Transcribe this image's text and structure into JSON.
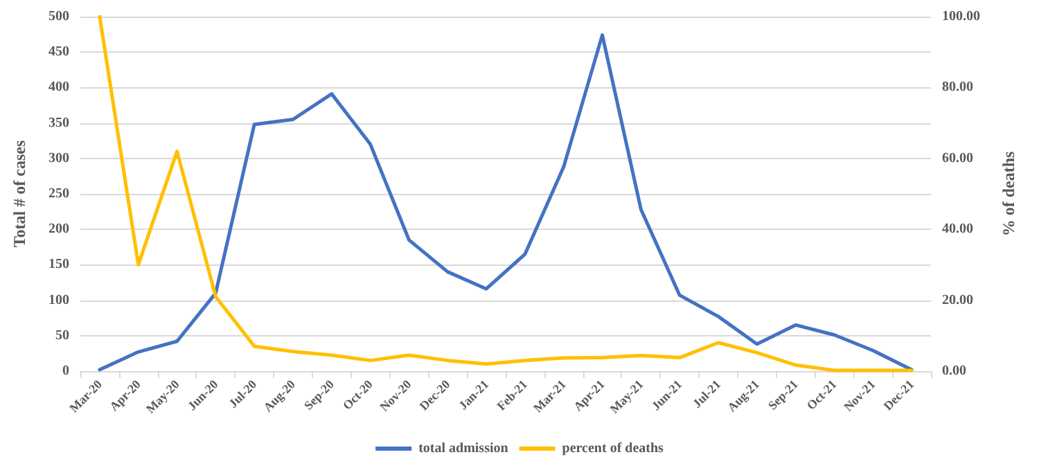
{
  "chart_data": {
    "type": "line",
    "ylabel": "Total # of cases",
    "y2label": "% of deaths",
    "categories": [
      "Mar-20",
      "Apr-20",
      "May-20",
      "Jun-20",
      "Jul-20",
      "Aug-20",
      "Sep-20",
      "Oct-20",
      "Nov-20",
      "Dec-20",
      "Jan-21",
      "Feb-21",
      "Mar-21",
      "Apr-21",
      "May-21",
      "Jun-21",
      "Jul-21",
      "Aug-21",
      "Sep-21",
      "Oct-21",
      "Nov-21",
      "Dec-21"
    ],
    "series": [
      {
        "name": "total admission",
        "color": "#4472c4",
        "values": [
          2,
          27,
          42,
          110,
          348,
          355,
          391,
          320,
          185,
          140,
          116,
          165,
          288,
          474,
          228,
          107,
          77,
          38,
          65,
          51,
          29,
          2
        ]
      },
      {
        "name": "percent of deaths",
        "color": "#ffc000",
        "axis": "y2",
        "values": [
          100,
          30,
          62,
          21,
          7,
          5.5,
          4.5,
          3,
          4.5,
          3,
          2,
          3,
          3.7,
          3.8,
          4.4,
          3.8,
          8,
          5.2,
          1.7,
          0.2,
          0.2,
          0.2
        ]
      }
    ],
    "ylim": [
      0,
      500
    ],
    "yticks": [
      0,
      50,
      100,
      150,
      200,
      250,
      300,
      350,
      400,
      450,
      500
    ],
    "y2lim": [
      0,
      100
    ],
    "y2ticks": [
      {
        "value": 0,
        "label": "0.00"
      },
      {
        "value": 20,
        "label": "20.00"
      },
      {
        "value": 40,
        "label": "40.00"
      },
      {
        "value": 60,
        "label": "60.00"
      },
      {
        "value": 80,
        "label": "80.00"
      },
      {
        "value": 100,
        "label": "100.00"
      }
    ],
    "grid": "y",
    "legend": "bottom",
    "marker": "none",
    "line_style": "solid"
  }
}
